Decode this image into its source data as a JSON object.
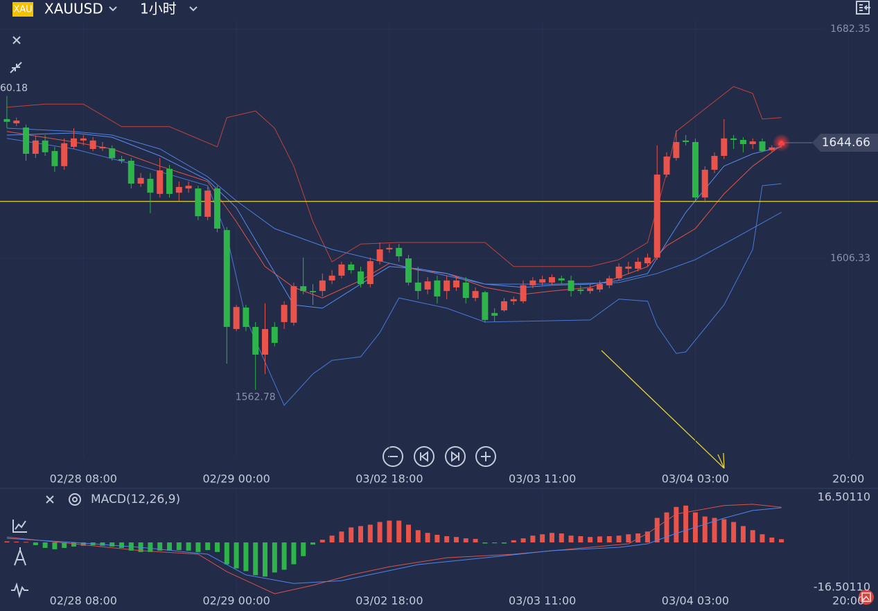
{
  "header": {
    "badge": "XAU",
    "symbol": "XAUUSD",
    "interval": "1小时"
  },
  "chart_data": [
    {
      "type": "candlestick",
      "up_color": "#e8534b",
      "down_color": "#2db44a",
      "grid": true,
      "xlim": [
        -0.72,
        91.1
      ],
      "xticks": [
        {
          "value": 8,
          "label": "02/28 08:00"
        },
        {
          "value": 24,
          "label": "02/29 00:00"
        },
        {
          "value": 40,
          "label": "03/02 18:00"
        },
        {
          "value": 56,
          "label": "03/03 11:00"
        },
        {
          "value": 72,
          "label": "03/04 03:00"
        },
        {
          "value": 88,
          "label": "20:00"
        }
      ],
      "ylim": [
        1535.8,
        1685.1
      ],
      "yticks": [
        1606.33,
        1682.35
      ],
      "high_label": "60.18",
      "hline": 1625.2,
      "hline_color": "#e6d43a",
      "ohlc": [
        [
          1652.5,
          1660.18,
          1649.5,
          1651.6
        ],
        [
          1651.1,
          1653.0,
          1650.2,
          1652.0
        ],
        [
          1649.7,
          1650.7,
          1638.7,
          1641.0
        ],
        [
          1641.0,
          1647.0,
          1639.6,
          1645.4
        ],
        [
          1645.4,
          1647.2,
          1640.3,
          1641.5
        ],
        [
          1641.9,
          1643.3,
          1635.0,
          1636.9
        ],
        [
          1636.9,
          1646.1,
          1635.7,
          1644.5
        ],
        [
          1643.3,
          1649.5,
          1642.6,
          1646.1
        ],
        [
          1645.4,
          1647.2,
          1643.8,
          1646.1
        ],
        [
          1642.6,
          1646.5,
          1641.9,
          1645.4
        ],
        [
          1642.8,
          1644.9,
          1641.9,
          1643.3
        ],
        [
          1642.8,
          1643.8,
          1638.7,
          1639.6
        ],
        [
          1639.2,
          1640.3,
          1637.8,
          1638.7
        ],
        [
          1638.7,
          1639.6,
          1629.5,
          1631.1
        ],
        [
          1631.1,
          1634.6,
          1630.0,
          1633.0
        ],
        [
          1632.7,
          1634.6,
          1621.3,
          1628.1
        ],
        [
          1627.7,
          1639.6,
          1626.5,
          1635.5
        ],
        [
          1636.0,
          1637.3,
          1626.5,
          1627.7
        ],
        [
          1628.1,
          1631.8,
          1625.4,
          1630.0
        ],
        [
          1629.5,
          1631.8,
          1628.1,
          1630.4
        ],
        [
          1629.5,
          1630.4,
          1619.0,
          1620.3
        ],
        [
          1620.1,
          1630.0,
          1619.0,
          1628.8
        ],
        [
          1629.5,
          1630.4,
          1615.0,
          1616.2
        ],
        [
          1615.7,
          1616.7,
          1571.4,
          1583.6
        ],
        [
          1582.9,
          1590.9,
          1582.2,
          1590.2
        ],
        [
          1590.0,
          1590.9,
          1582.2,
          1583.6
        ],
        [
          1583.6,
          1585.2,
          1562.78,
          1574.4
        ],
        [
          1574.4,
          1591.4,
          1568.0,
          1582.9
        ],
        [
          1583.6,
          1585.2,
          1577.1,
          1578.3
        ],
        [
          1585.2,
          1592.1,
          1582.9,
          1590.9
        ],
        [
          1585.0,
          1598.3,
          1584.0,
          1597.1
        ],
        [
          1597.1,
          1606.6,
          1594.4,
          1595.5
        ],
        [
          1595.5,
          1597.8,
          1590.9,
          1595.1
        ],
        [
          1595.5,
          1601.3,
          1593.7,
          1599.0
        ],
        [
          1599.0,
          1602.4,
          1597.8,
          1600.6
        ],
        [
          1600.6,
          1605.2,
          1599.7,
          1604.3
        ],
        [
          1604.3,
          1605.2,
          1601.3,
          1602.4
        ],
        [
          1602.0,
          1603.6,
          1596.7,
          1597.8
        ],
        [
          1597.8,
          1606.6,
          1596.7,
          1605.4
        ],
        [
          1605.4,
          1611.6,
          1604.3,
          1609.3
        ],
        [
          1609.3,
          1611.1,
          1608.2,
          1609.8
        ],
        [
          1609.8,
          1611.1,
          1605.2,
          1607.0
        ],
        [
          1606.3,
          1607.5,
          1597.4,
          1598.3
        ],
        [
          1598.3,
          1603.6,
          1592.8,
          1595.5
        ],
        [
          1596.0,
          1600.1,
          1594.4,
          1598.7
        ],
        [
          1599.0,
          1600.6,
          1591.4,
          1593.7
        ],
        [
          1595.5,
          1600.6,
          1592.8,
          1599.0
        ],
        [
          1596.7,
          1600.6,
          1595.5,
          1599.0
        ],
        [
          1598.3,
          1600.1,
          1591.4,
          1593.2
        ],
        [
          1593.2,
          1596.7,
          1592.1,
          1595.5
        ],
        [
          1595.1,
          1595.5,
          1585.0,
          1585.9
        ],
        [
          1588.2,
          1589.8,
          1585.2,
          1587.3
        ],
        [
          1589.1,
          1593.2,
          1588.6,
          1592.1
        ],
        [
          1592.1,
          1593.7,
          1590.9,
          1592.8
        ],
        [
          1592.1,
          1599.0,
          1591.4,
          1597.4
        ],
        [
          1597.4,
          1600.1,
          1596.4,
          1599.0
        ],
        [
          1598.3,
          1600.6,
          1597.4,
          1599.4
        ],
        [
          1598.3,
          1601.0,
          1597.4,
          1600.1
        ],
        [
          1599.7,
          1600.6,
          1597.8,
          1599.0
        ],
        [
          1599.0,
          1600.6,
          1593.7,
          1595.5
        ],
        [
          1596.0,
          1597.4,
          1594.4,
          1595.5
        ],
        [
          1595.5,
          1597.8,
          1594.6,
          1596.4
        ],
        [
          1596.0,
          1599.0,
          1595.1,
          1597.8
        ],
        [
          1597.4,
          1600.6,
          1596.4,
          1599.7
        ],
        [
          1599.7,
          1604.7,
          1599.0,
          1603.6
        ],
        [
          1602.9,
          1605.2,
          1601.3,
          1603.6
        ],
        [
          1602.9,
          1606.6,
          1602.0,
          1605.2
        ],
        [
          1604.7,
          1607.9,
          1603.6,
          1606.6
        ],
        [
          1606.6,
          1643.8,
          1605.9,
          1634.1
        ],
        [
          1634.1,
          1641.5,
          1633.2,
          1640.1
        ],
        [
          1639.6,
          1648.8,
          1638.7,
          1644.9
        ],
        [
          1645.4,
          1647.2,
          1643.8,
          1644.9
        ],
        [
          1644.9,
          1646.1,
          1625.4,
          1626.5
        ],
        [
          1626.5,
          1636.9,
          1624.9,
          1635.7
        ],
        [
          1635.7,
          1641.5,
          1634.6,
          1640.3
        ],
        [
          1640.3,
          1652.5,
          1639.2,
          1646.1
        ],
        [
          1646.1,
          1647.2,
          1642.6,
          1645.6
        ],
        [
          1645.6,
          1646.5,
          1641.5,
          1644.2
        ],
        [
          1644.2,
          1646.1,
          1642.6,
          1645.1
        ],
        [
          1645.1,
          1646.1,
          1641.5,
          1641.9
        ],
        [
          1642.2,
          1643.8,
          1641.5,
          1643.1
        ],
        [
          1643.8,
          1644.9,
          1643.3,
          1644.66
        ]
      ],
      "lines": [
        {
          "color": "#c0443f",
          "x": [
            0,
            4,
            8,
            12,
            17,
            22,
            23,
            26,
            28,
            30,
            32,
            34,
            37,
            41,
            50,
            53,
            61,
            64,
            67,
            69,
            70,
            72,
            76,
            78,
            79,
            81
          ],
          "values": [
            1656.4,
            1657.5,
            1657.5,
            1650.0,
            1650.0,
            1643.3,
            1653.0,
            1655.2,
            1649.5,
            1636.9,
            1618.5,
            1605.2,
            1611.1,
            1611.6,
            1611.6,
            1603.6,
            1603.6,
            1605.9,
            1611.6,
            1634.6,
            1648.4,
            1653.4,
            1663.3,
            1661.0,
            1652.5,
            1653.0
          ]
        },
        {
          "color": "#e0554d",
          "x": [
            0,
            7,
            11,
            16,
            21,
            24,
            27,
            30,
            33,
            37,
            40,
            43,
            46,
            50,
            54,
            57,
            61,
            64,
            67,
            69,
            72,
            75,
            78,
            81
          ],
          "values": [
            1648.4,
            1644.9,
            1642.6,
            1636.9,
            1631.8,
            1618.5,
            1603.6,
            1596.7,
            1593.2,
            1599.0,
            1604.7,
            1602.4,
            1601.3,
            1596.7,
            1594.4,
            1595.5,
            1596.7,
            1600.1,
            1603.6,
            1610.5,
            1616.2,
            1627.7,
            1636.9,
            1643.8
          ]
        },
        {
          "color": "#5a8cf0",
          "x": [
            0,
            7,
            11,
            16,
            21,
            24,
            27,
            30,
            33,
            37,
            40,
            43,
            46,
            50,
            54,
            57,
            61,
            64,
            67,
            69,
            71,
            75,
            78,
            81
          ],
          "values": [
            1647.2,
            1647.9,
            1646.5,
            1640.3,
            1632.3,
            1623.1,
            1607.0,
            1590.9,
            1589.8,
            1597.8,
            1603.6,
            1602.9,
            1601.3,
            1597.8,
            1596.7,
            1597.4,
            1597.8,
            1599.0,
            1601.3,
            1611.6,
            1621.6,
            1636.9,
            1641.0,
            1643.3
          ]
        },
        {
          "color": "#4f7fe0",
          "x": [
            0,
            7,
            11,
            16,
            21,
            24,
            28,
            34,
            40,
            50,
            57,
            64,
            68,
            72,
            76,
            81
          ],
          "values": [
            1649.5,
            1648.4,
            1647.2,
            1642.6,
            1633.4,
            1625.4,
            1616.2,
            1609.3,
            1604.7,
            1597.8,
            1597.8,
            1598.3,
            1601.3,
            1605.9,
            1612.8,
            1621.6
          ]
        },
        {
          "color": "#4a78d8",
          "x": [
            0,
            7,
            14,
            21,
            23,
            25,
            29,
            32,
            34,
            37,
            39,
            41,
            46,
            50,
            61,
            64,
            67,
            68,
            70,
            71,
            75,
            78,
            79,
            81
          ],
          "values": [
            1646.1,
            1642.6,
            1636.9,
            1630.4,
            1613.9,
            1586.3,
            1557.6,
            1568.0,
            1572.5,
            1573.7,
            1581.7,
            1593.2,
            1589.8,
            1585.2,
            1585.9,
            1592.8,
            1592.1,
            1584.0,
            1574.8,
            1575.3,
            1590.9,
            1609.3,
            1630.4,
            1631.1
          ]
        }
      ]
    },
    {
      "type": "macd",
      "title": "MACD(12,26,9)",
      "up_color": "#e8534b",
      "down_color": "#2db44a",
      "xlim": [
        -0.72,
        91.1
      ],
      "ylim": [
        -24.6,
        19.8
      ],
      "yticks": [
        {
          "value": 16.5011,
          "label": "16.50110"
        },
        {
          "value": -16.5011,
          "label": "-16.50110"
        }
      ],
      "histogram": [
        0.4,
        0.3,
        0.2,
        -1.0,
        -2.0,
        -2.5,
        -2.0,
        -1.5,
        -1.2,
        -1.0,
        -1.2,
        -1.5,
        -2.0,
        -3.0,
        -3.5,
        -3.5,
        -3.0,
        -3.0,
        -2.8,
        -3.0,
        -3.5,
        -2.8,
        -3.5,
        -8.0,
        -9.5,
        -10.5,
        -12.0,
        -12.5,
        -11.0,
        -10.0,
        -8.0,
        -5.0,
        -0.8,
        1.0,
        2.5,
        4.0,
        5.5,
        6.0,
        6.5,
        7.5,
        8.0,
        8.0,
        6.5,
        4.5,
        3.5,
        2.8,
        2.3,
        2.0,
        1.5,
        1.3,
        -0.4,
        -0.3,
        -0.4,
        0.8,
        1.5,
        2.5,
        3.0,
        3.5,
        3.3,
        2.5,
        2.3,
        2.0,
        2.2,
        2.3,
        2.5,
        3.0,
        3.3,
        4.0,
        9.0,
        11.0,
        13.0,
        13.5,
        11.0,
        9.5,
        9.0,
        8.5,
        7.5,
        6.0,
        4.5,
        3.0,
        1.8,
        1.2
      ],
      "lines": [
        {
          "color": "#d9544c",
          "x": [
            0,
            7,
            14,
            20,
            23,
            28,
            32,
            36,
            40,
            46,
            53,
            65,
            67,
            70,
            75,
            78,
            81
          ],
          "values": [
            2.0,
            -0.5,
            -3.0,
            -4.3,
            -10.7,
            -18.8,
            -15.7,
            -11.9,
            -8.9,
            -5.6,
            -4.3,
            -0.5,
            3.3,
            10.4,
            13.5,
            14.0,
            12.9
          ]
        },
        {
          "color": "#4f86ee",
          "x": [
            0,
            7,
            14,
            21,
            25,
            30,
            35,
            43,
            50,
            57,
            64,
            67,
            70,
            75,
            78,
            81
          ],
          "values": [
            1.5,
            0,
            -1.8,
            -4.3,
            -11.9,
            -15.0,
            -14.0,
            -8.1,
            -5.6,
            -3.0,
            -1.8,
            -0.5,
            3.3,
            8.9,
            11.7,
            12.7
          ]
        }
      ]
    }
  ]
}
